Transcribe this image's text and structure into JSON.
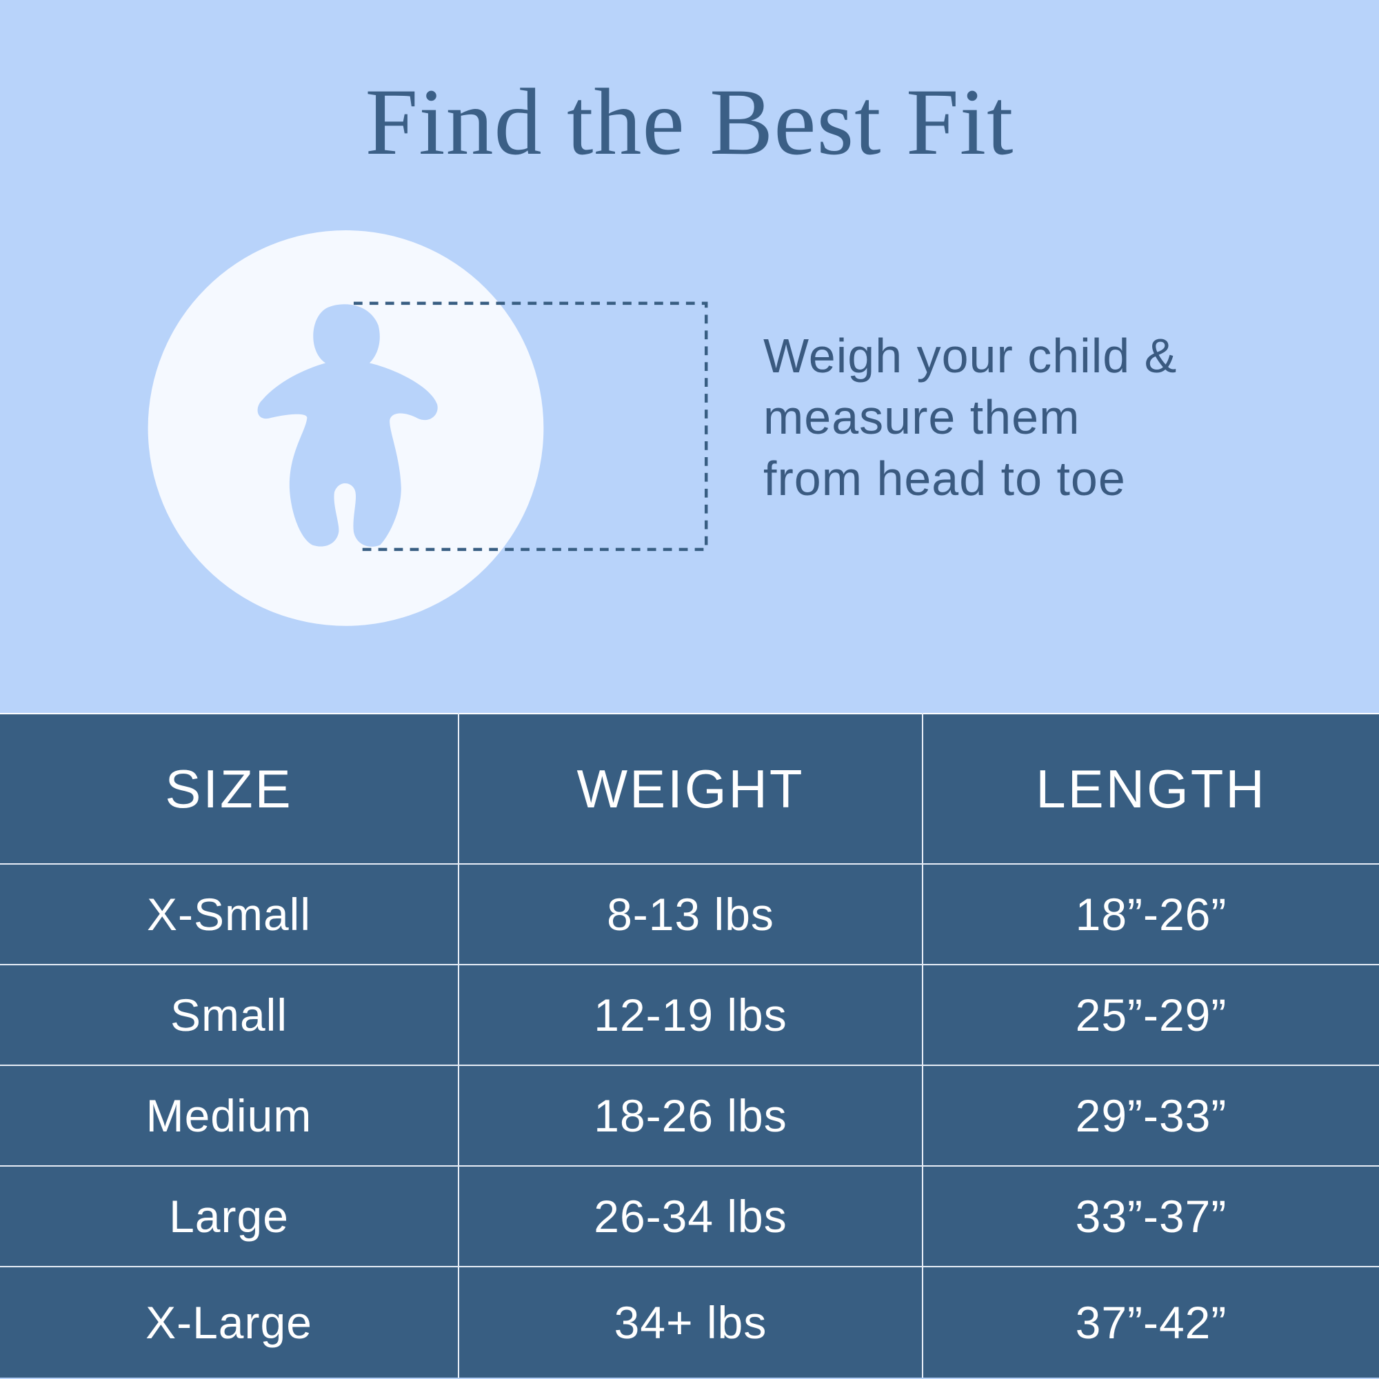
{
  "title": "Find the Best Fit",
  "instructions": [
    "Weigh your child &",
    "measure them",
    "from head to toe"
  ],
  "illustration": {
    "icon": "baby-silhouette-icon",
    "measure_frame": "dashed-measurement-frame"
  },
  "colors": {
    "background": "#b8d3fa",
    "table": "#385e82",
    "text": "#3a5a80",
    "circle": "#f5f9ff"
  },
  "table": {
    "headers": [
      "SIZE",
      "WEIGHT",
      "LENGTH"
    ],
    "rows": [
      [
        "X-Small",
        "8-13 lbs",
        "18”-26”"
      ],
      [
        "Small",
        "12-19 lbs",
        "25”-29”"
      ],
      [
        "Medium",
        "18-26 lbs",
        "29”-33”"
      ],
      [
        "Large",
        "26-34 lbs",
        "33”-37”"
      ],
      [
        "X-Large",
        "34+ lbs",
        "37”-42”"
      ]
    ]
  }
}
